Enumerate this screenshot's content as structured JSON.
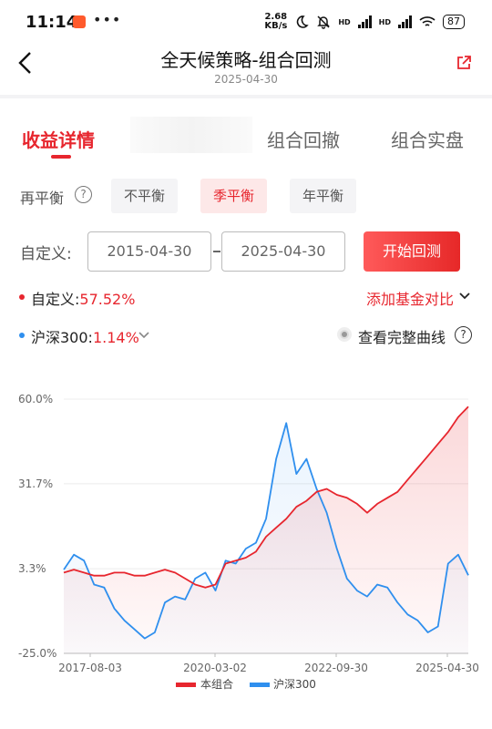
{
  "status": {
    "time": "11:14",
    "more": "•••",
    "net_speed": "2.68",
    "net_unit": "KB/s",
    "battery": "87",
    "hd1": "HD",
    "hd2": "HD"
  },
  "header": {
    "title": "全天候策略-组合回测",
    "subtitle": "2025-04-30"
  },
  "tabs": [
    {
      "label": "收益详情"
    },
    {
      "label": "组合回撤"
    },
    {
      "label": "组合实盘"
    }
  ],
  "rebalance": {
    "label": "再平衡",
    "help": "?",
    "options": [
      "不平衡",
      "季平衡",
      "年平衡"
    ],
    "selected": "季平衡"
  },
  "custom_range": {
    "label": "自定义:",
    "start": "2015-04-30",
    "end": "2025-04-30",
    "button": "开始回测"
  },
  "summary": {
    "portfolio_label": "自定义:",
    "portfolio_return": "57.52%",
    "add_compare": "添加基金对比",
    "benchmark_label": "沪深300:",
    "benchmark_return": "1.14%",
    "full_curve": "查看完整曲线",
    "help": "?"
  },
  "colors": {
    "accent": "#e7262e",
    "portfolio": "#e7262e",
    "benchmark": "#2f8fee"
  },
  "chart_data": {
    "type": "line",
    "y_tick_labels": [
      "60.0%",
      "31.7%",
      "3.3%",
      "-25.0%"
    ],
    "y_ticks": [
      60.0,
      31.7,
      3.3,
      -25.0
    ],
    "ylim": [
      -25.0,
      60.0
    ],
    "x_tick_labels": [
      "2017-08-03",
      "2020-03-02",
      "2022-09-30",
      "2025-04-30"
    ],
    "legend_position": "bottom",
    "x": [
      "2015-04",
      "2015-07",
      "2015-10",
      "2016-01",
      "2016-04",
      "2016-07",
      "2016-10",
      "2017-01",
      "2017-04",
      "2017-07",
      "2017-10",
      "2018-01",
      "2018-04",
      "2018-07",
      "2018-10",
      "2019-01",
      "2019-04",
      "2019-07",
      "2019-10",
      "2020-01",
      "2020-04",
      "2020-07",
      "2020-10",
      "2021-01",
      "2021-04",
      "2021-07",
      "2021-10",
      "2022-01",
      "2022-04",
      "2022-07",
      "2022-10",
      "2023-01",
      "2023-04",
      "2023-07",
      "2023-10",
      "2024-01",
      "2024-04",
      "2024-07",
      "2024-10",
      "2025-01",
      "2025-04"
    ],
    "series": [
      {
        "name": "本组合",
        "values": [
          2,
          3,
          2,
          1,
          1,
          2,
          2,
          1,
          1,
          2,
          3,
          2,
          0,
          -2,
          -3,
          -2,
          5,
          6,
          7,
          9,
          14,
          17,
          20,
          24,
          26,
          29,
          30,
          28,
          27,
          25,
          22,
          25,
          27,
          29,
          33,
          37,
          41,
          45,
          49,
          54,
          57.5
        ]
      },
      {
        "name": "沪深300",
        "values": [
          3,
          8,
          6,
          -2,
          -3,
          -10,
          -14,
          -17,
          -20,
          -18,
          -8,
          -6,
          -7,
          0,
          2,
          -4,
          6,
          5,
          10,
          12,
          20,
          40,
          52,
          35,
          40,
          30,
          22,
          10,
          0,
          -4,
          -6,
          -2,
          -3,
          -8,
          -12,
          -14,
          -18,
          -16,
          5,
          8,
          1.1
        ]
      }
    ]
  }
}
